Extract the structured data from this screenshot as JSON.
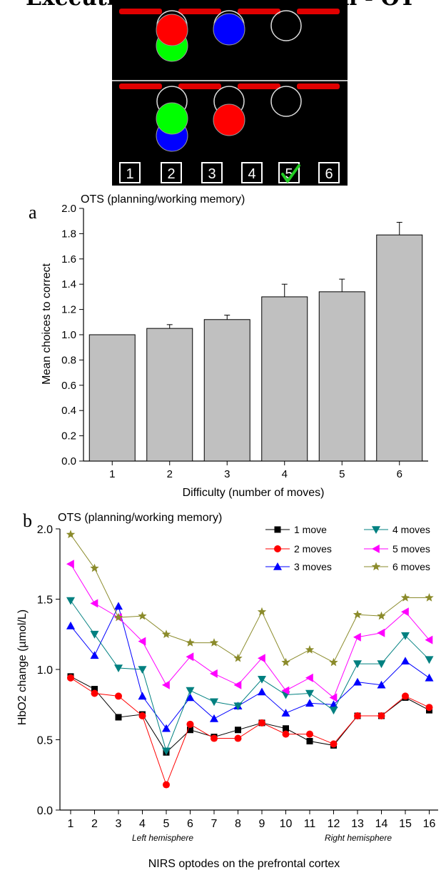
{
  "header": {
    "title": "Executive functions session - OT"
  },
  "task_display": {
    "button_labels": [
      "1",
      "2",
      "3",
      "4",
      "5",
      "6"
    ],
    "ball_colors": {
      "red": "#ff0000",
      "green": "#00ff00",
      "blue": "#0000ff"
    },
    "bar_color": "#e00000",
    "check_color": "#22cc22",
    "check_icon": "checkmark-icon",
    "selected_answer": "5"
  },
  "chart_data": [
    {
      "type": "bar",
      "panel_label": "a",
      "title": "OTS (planning/working memory)",
      "xlabel": "Difficulty (number of moves)",
      "ylabel": "Mean choices to correct",
      "categories": [
        "1",
        "2",
        "3",
        "4",
        "5",
        "6"
      ],
      "values": [
        1.0,
        1.05,
        1.12,
        1.3,
        1.34,
        1.79
      ],
      "errors": [
        0.0,
        0.03,
        0.035,
        0.1,
        0.1,
        0.1
      ],
      "ylim": [
        0,
        2.0
      ],
      "yticks": [
        "0.0",
        "0.2",
        "0.4",
        "0.6",
        "0.8",
        "1.0",
        "1.2",
        "1.4",
        "1.6",
        "1.8",
        "2.0"
      ],
      "bar_color": "#c0c0c0"
    },
    {
      "type": "line",
      "panel_label": "b",
      "title": "OTS (planning/working memory)",
      "xlabel": "NIRS optodes on the prefrontal cortex",
      "ylabel": "HbO2 change (µmol/L)",
      "x": [
        1,
        2,
        3,
        4,
        5,
        6,
        7,
        8,
        9,
        10,
        11,
        12,
        13,
        14,
        15,
        16
      ],
      "ylim": [
        0,
        2.0
      ],
      "yticks": [
        "0.0",
        "0.5",
        "1.0",
        "1.5",
        "2.0"
      ],
      "annotations": [
        "Left hemisphere",
        "Right hemisphere"
      ],
      "legend_placement": "top-right",
      "series": [
        {
          "name": "1 move",
          "color": "#000000",
          "marker": "square",
          "values": [
            0.95,
            0.86,
            0.66,
            0.68,
            0.41,
            0.57,
            0.52,
            0.57,
            0.62,
            0.58,
            0.49,
            0.46,
            0.67,
            0.67,
            0.8,
            0.71
          ]
        },
        {
          "name": "2 moves",
          "color": "#ff0000",
          "marker": "circle",
          "values": [
            0.94,
            0.83,
            0.81,
            0.67,
            0.18,
            0.61,
            0.51,
            0.51,
            0.62,
            0.54,
            0.54,
            0.47,
            0.67,
            0.67,
            0.81,
            0.73
          ]
        },
        {
          "name": "3 moves",
          "color": "#0000ff",
          "marker": "triangle-up",
          "values": [
            1.31,
            1.1,
            1.45,
            0.81,
            0.58,
            0.8,
            0.65,
            0.74,
            0.84,
            0.69,
            0.76,
            0.75,
            0.91,
            0.89,
            1.06,
            0.94
          ]
        },
        {
          "name": "4 moves",
          "color": "#008080",
          "marker": "triangle-down",
          "values": [
            1.49,
            1.25,
            1.01,
            1.0,
            0.42,
            0.85,
            0.77,
            0.74,
            0.93,
            0.82,
            0.83,
            0.71,
            1.04,
            1.04,
            1.24,
            1.07
          ]
        },
        {
          "name": "5 moves",
          "color": "#ff00ff",
          "marker": "triangle-left",
          "values": [
            1.75,
            1.47,
            1.37,
            1.2,
            0.89,
            1.09,
            0.97,
            0.89,
            1.08,
            0.85,
            0.94,
            0.8,
            1.23,
            1.26,
            1.41,
            1.21
          ]
        },
        {
          "name": "6 moves",
          "color": "#8b8b2b",
          "marker": "star",
          "values": [
            1.96,
            1.72,
            1.37,
            1.38,
            1.25,
            1.19,
            1.19,
            1.08,
            1.41,
            1.05,
            1.14,
            1.05,
            1.39,
            1.38,
            1.51,
            1.51
          ]
        }
      ]
    }
  ]
}
